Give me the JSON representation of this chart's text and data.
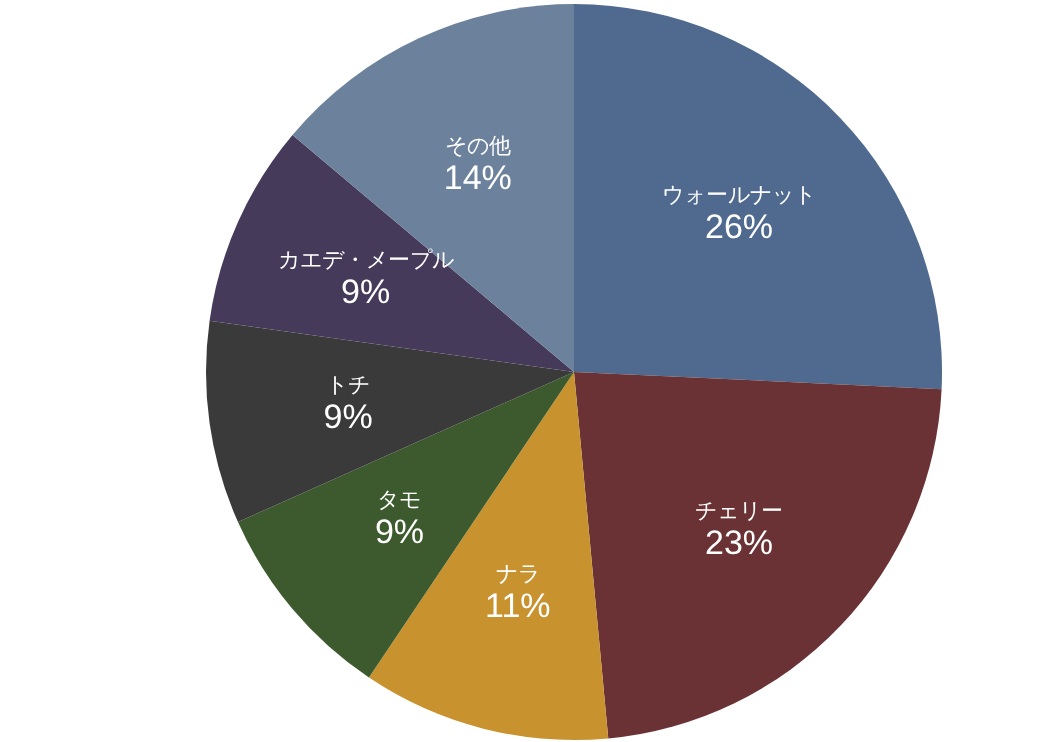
{
  "chart_data": {
    "type": "pie",
    "categories": [
      "ウォールナット",
      "チェリー",
      "ナラ",
      "タモ",
      "トチ",
      "カエデ・メープル",
      "その他"
    ],
    "values": [
      26,
      23,
      11,
      9,
      9,
      9,
      14
    ],
    "colors": [
      "#4f6a8e",
      "#6a3234",
      "#c8932f",
      "#3d5a2e",
      "#3a3a3a",
      "#463a5a",
      "#6c819c"
    ],
    "value_labels": [
      "26%",
      "23%",
      "11%",
      "9%",
      "9%",
      "9%",
      "14%"
    ]
  }
}
